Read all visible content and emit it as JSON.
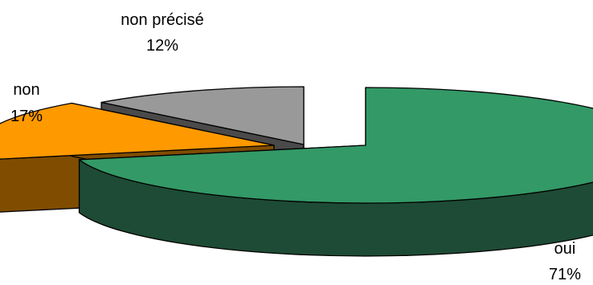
{
  "chart_data": {
    "type": "pie",
    "style": "3d-exploded",
    "title": "",
    "slices": [
      {
        "label": "oui",
        "value": 71,
        "pct_label": "71%",
        "top_color": "#339966",
        "side_color": "#1e4b35"
      },
      {
        "label": "non",
        "value": 17,
        "pct_label": "17%",
        "top_color": "#ff9900",
        "side_color": "#804d00"
      },
      {
        "label": "non précisé",
        "value": 12,
        "pct_label": "12%",
        "top_color": "#999999",
        "side_color": "#4a4a4a"
      }
    ],
    "legend": "none",
    "labels_outside": true
  }
}
